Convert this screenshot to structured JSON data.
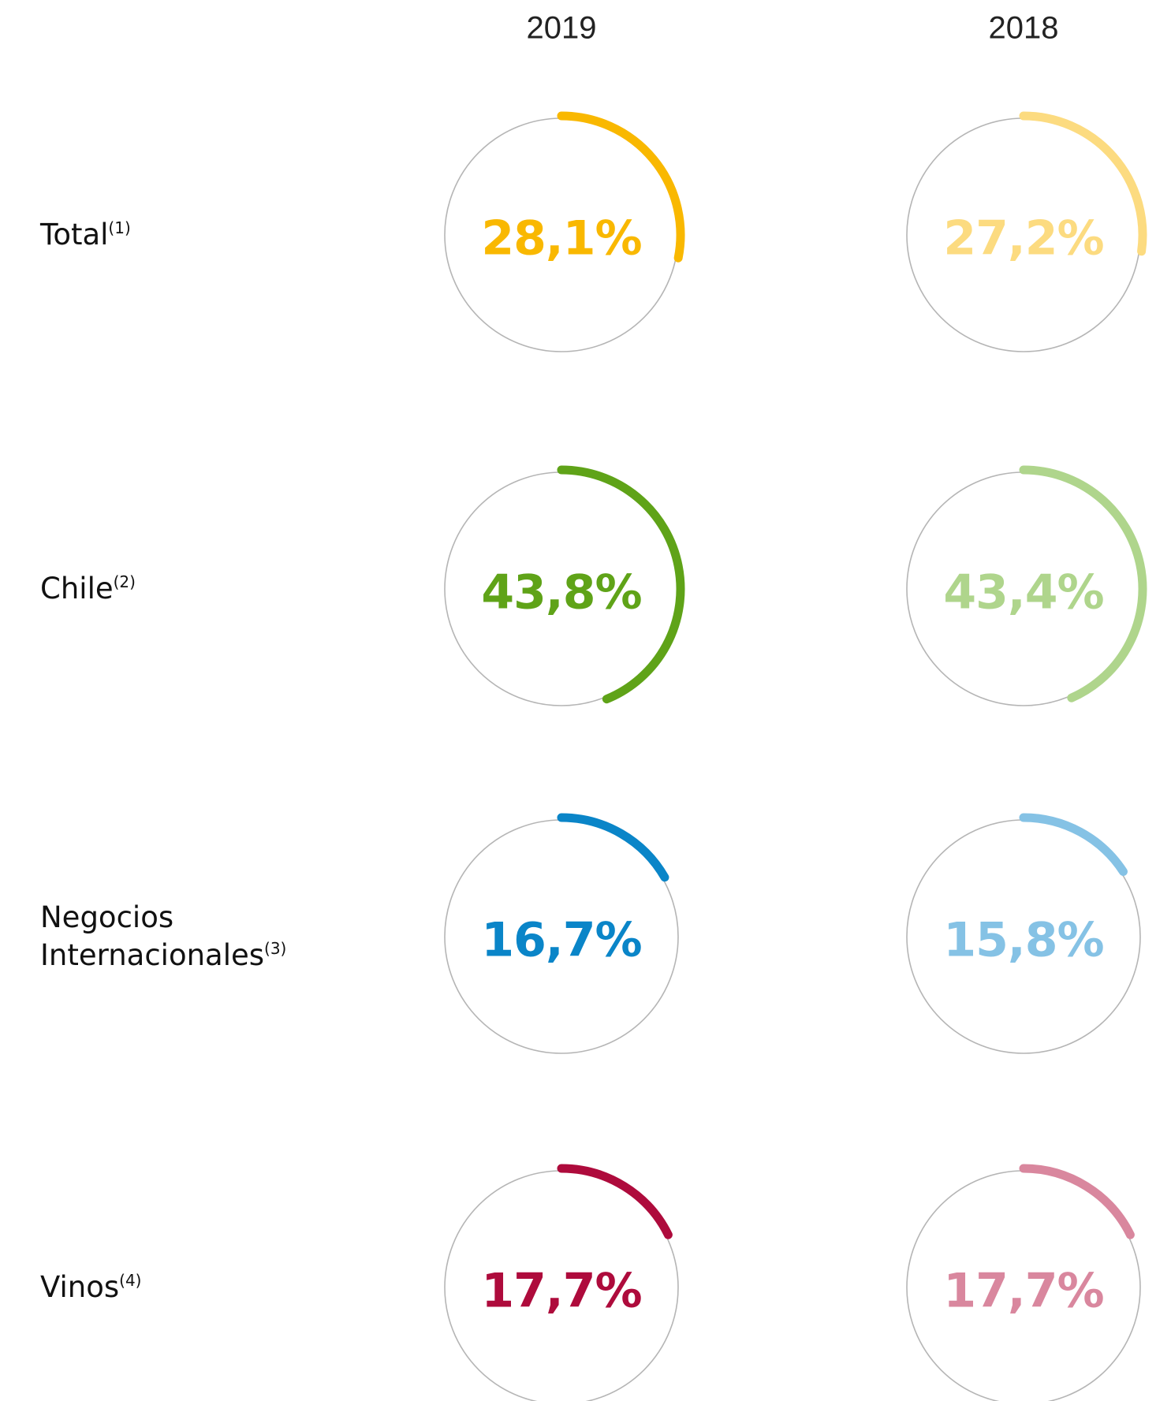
{
  "chart_data": {
    "type": "radial",
    "categories": [
      "Total",
      "Chile",
      "Negocios Internacionales",
      "Vinos"
    ],
    "category_notes": [
      "(1)",
      "(2)",
      "(3)",
      "(4)"
    ],
    "ylim": [
      0,
      100
    ],
    "series": [
      {
        "name": "2019",
        "colors": [
          "#f9b800",
          "#5fa318",
          "#0a85c8",
          "#ae0b3c"
        ],
        "values": [
          28.1,
          43.8,
          16.7,
          17.7
        ],
        "value_labels": [
          "28,1%",
          "43,8%",
          "16,7%",
          "17,7%"
        ]
      },
      {
        "name": "2018",
        "colors": [
          "#fcdb80",
          "#afd58c",
          "#85c2e5",
          "#d9879e"
        ],
        "values": [
          27.2,
          43.4,
          15.8,
          17.7
        ],
        "value_labels": [
          "27,2%",
          "43,4%",
          "15,8%",
          "17,7%"
        ]
      }
    ]
  }
}
